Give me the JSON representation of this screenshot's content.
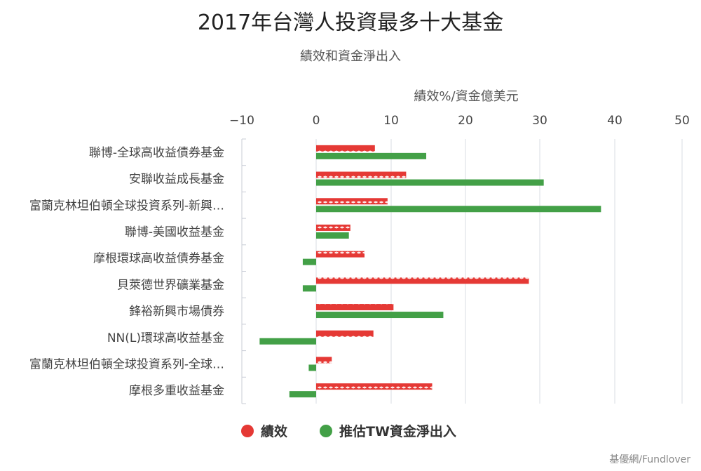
{
  "chart_data": {
    "type": "bar",
    "title": "2017年台灣人投資最多十大基金",
    "subtitle": "績效和資金淨出入",
    "xlabel": "績效%/資金億美元",
    "xlim": [
      -10,
      50
    ],
    "xticks": [
      -10,
      0,
      10,
      20,
      30,
      40,
      50
    ],
    "grid": true,
    "legend_position": "bottom-center",
    "categories": [
      "聯博-全球高收益債券基金",
      "安聯收益成長基金",
      "富蘭克林坦伯頓全球投資系列-新興…",
      "聯博-美國收益基金",
      "摩根環球高收益債券基金",
      "貝萊德世界礦業基金",
      "鋒裕新興市場債券",
      "NN(L)環球高收益基金",
      "富蘭克林坦伯頓全球投資系列-全球…",
      "摩根多重收益基金"
    ],
    "series": [
      {
        "name": "績效",
        "color": "#e53935",
        "pattern": "zigzag",
        "values": [
          7.9,
          12.1,
          9.6,
          4.6,
          6.5,
          28.6,
          10.4,
          7.7,
          2.1,
          15.6
        ]
      },
      {
        "name": "推估TW資金淨出入",
        "color": "#43a047",
        "pattern": "solid",
        "values": [
          14.8,
          30.6,
          38.3,
          4.4,
          -1.8,
          -1.8,
          17.1,
          -7.6,
          -1.0,
          -3.6
        ]
      }
    ]
  },
  "source": "基優網/Fundlover"
}
